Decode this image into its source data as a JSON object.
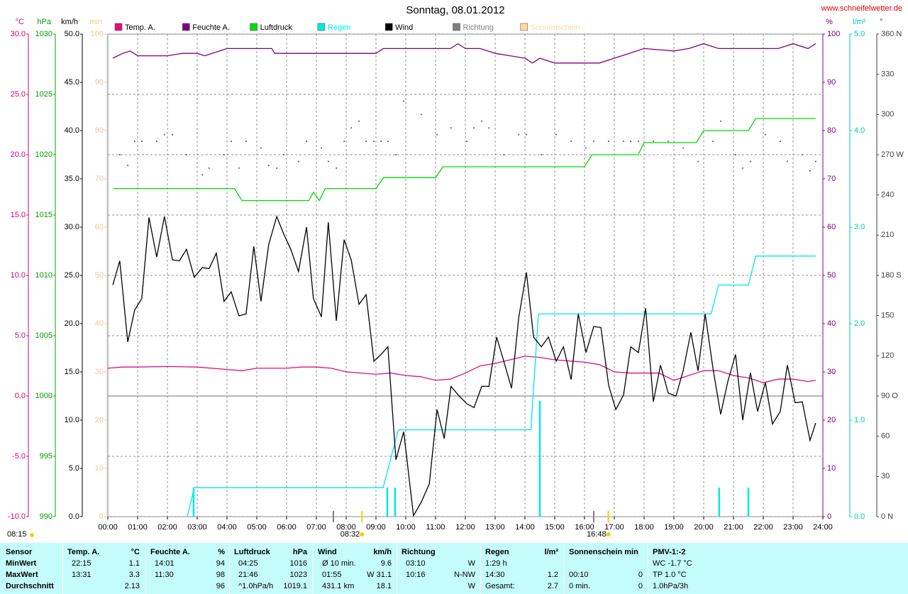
{
  "chart_data": {
    "type": "line",
    "title": "Sonntag, 08.01.2012",
    "source": "www.schneifelwetter.de",
    "xlim": [
      0,
      24
    ],
    "xticks": [
      {
        "value": 0,
        "label": "00:00"
      },
      {
        "value": 1,
        "label": "01:00"
      },
      {
        "value": 2,
        "label": "02:00"
      },
      {
        "value": 3,
        "label": "03:00"
      },
      {
        "value": 4,
        "label": "04:00"
      },
      {
        "value": 5,
        "label": "05:00"
      },
      {
        "value": 6,
        "label": "06:00"
      },
      {
        "value": 7,
        "label": "07:00"
      },
      {
        "value": 8,
        "label": "08:00"
      },
      {
        "value": 9,
        "label": "09:00"
      },
      {
        "value": 10,
        "label": "10:00"
      },
      {
        "value": 11,
        "label": "11:00"
      },
      {
        "value": 12,
        "label": "12:00"
      },
      {
        "value": 13,
        "label": "13:00"
      },
      {
        "value": 14,
        "label": "14:00"
      },
      {
        "value": 15,
        "label": "15:00"
      },
      {
        "value": 16,
        "label": "16:00"
      },
      {
        "value": 17,
        "label": "17:00"
      },
      {
        "value": 18,
        "label": "18:00"
      },
      {
        "value": 19,
        "label": "19:00"
      },
      {
        "value": 20,
        "label": "20:00"
      },
      {
        "value": 21,
        "label": "21:00"
      },
      {
        "value": 22,
        "label": "22:00"
      },
      {
        "value": 23,
        "label": "23:00"
      },
      {
        "value": 24,
        "label": "24:00"
      }
    ],
    "grid": true,
    "axes": [
      {
        "unit": "°C",
        "color": "#d0007f",
        "side": "left",
        "lim": [
          -10,
          30
        ],
        "ticks": [
          {
            "value": -10,
            "label": "-10.0"
          },
          {
            "value": -5,
            "label": "-5.0"
          },
          {
            "value": 0,
            "label": "0.0"
          },
          {
            "value": 5,
            "label": "5.0"
          },
          {
            "value": 10,
            "label": "10.0"
          },
          {
            "value": 15,
            "label": "15.0"
          },
          {
            "value": 20,
            "label": "20.0"
          },
          {
            "value": 25,
            "label": "25.0"
          },
          {
            "value": 30,
            "label": "30.0"
          }
        ]
      },
      {
        "unit": "hPa",
        "color": "#00a000",
        "side": "left",
        "lim": [
          990,
          1030
        ],
        "ticks": [
          990,
          995,
          1000,
          1005,
          1010,
          1015,
          1020,
          1025,
          1030
        ]
      },
      {
        "unit": "km/h",
        "color": "#000000",
        "side": "left",
        "lim": [
          0,
          50
        ],
        "ticks": [
          {
            "value": 0,
            "label": "0.0"
          },
          {
            "value": 5,
            "label": "5.0"
          },
          {
            "value": 10,
            "label": "10.0"
          },
          {
            "value": 15,
            "label": "15.0"
          },
          {
            "value": 20,
            "label": "20.0"
          },
          {
            "value": 25,
            "label": "25.0"
          },
          {
            "value": 30,
            "label": "30.0"
          },
          {
            "value": 35,
            "label": "35.0"
          },
          {
            "value": 40,
            "label": "40.0"
          },
          {
            "value": 45,
            "label": "45.0"
          },
          {
            "value": 50,
            "label": "50.0"
          }
        ]
      },
      {
        "unit": "min",
        "color": "#f0c890",
        "side": "left",
        "lim": [
          0,
          100
        ],
        "ticks": [
          0,
          10,
          20,
          30,
          40,
          50,
          60,
          70,
          80,
          90,
          100
        ]
      },
      {
        "unit": "%",
        "color": "#800080",
        "side": "right",
        "lim": [
          0,
          100
        ],
        "ticks": [
          0,
          10,
          20,
          30,
          40,
          50,
          60,
          70,
          80,
          90,
          100
        ]
      },
      {
        "unit": "l/m²",
        "color": "#00c8c8",
        "side": "right",
        "lim": [
          0,
          5
        ],
        "ticks": [
          {
            "value": 0,
            "label": "0.0"
          },
          {
            "value": 1,
            "label": "1.0"
          },
          {
            "value": 2,
            "label": "2.0"
          },
          {
            "value": 3,
            "label": "3.0"
          },
          {
            "value": 4,
            "label": "4.0"
          },
          {
            "value": 5,
            "label": "5.0"
          }
        ]
      },
      {
        "unit": "°",
        "color": "#404040",
        "side": "right",
        "lim": [
          0,
          360
        ],
        "ticks": [
          {
            "value": 0,
            "label": "0 N"
          },
          30,
          60,
          {
            "value": 90,
            "label": "90 O"
          },
          120,
          150,
          {
            "value": 180,
            "label": "180 S"
          },
          210,
          240,
          {
            "value": 270,
            "label": "270 W"
          },
          300,
          330,
          {
            "value": 360,
            "label": "360 N"
          }
        ]
      }
    ],
    "series": [
      {
        "name": "Temp. A.",
        "color": "#e0107a",
        "axis": 0,
        "style": "line",
        "x": [
          0,
          0.5,
          1,
          2,
          3,
          4,
          4.5,
          5,
          6,
          6.5,
          7,
          7.5,
          8,
          9,
          9.5,
          10,
          10.5,
          11,
          11.5,
          12,
          12.5,
          13,
          13.5,
          14,
          14.5,
          15,
          15.5,
          16,
          16.5,
          17,
          17.5,
          18,
          18.5,
          19,
          19.5,
          20,
          20.5,
          21,
          21.5,
          22,
          22.5,
          23,
          23.5,
          23.76
        ],
        "values": [
          2.3,
          2.4,
          2.4,
          2.45,
          2.4,
          2.2,
          2.1,
          2.3,
          2.3,
          2.4,
          2.4,
          2.3,
          2.0,
          1.8,
          1.9,
          1.7,
          1.6,
          1.3,
          1.4,
          1.9,
          2.5,
          2.7,
          3.0,
          3.3,
          3.2,
          3.0,
          2.9,
          2.8,
          2.6,
          2.0,
          1.9,
          1.9,
          1.9,
          1.3,
          1.7,
          2.1,
          2.1,
          1.7,
          1.5,
          1.1,
          1.4,
          1.4,
          1.2,
          1.3
        ]
      },
      {
        "name": "Feuchte A.",
        "color": "#800080",
        "axis": 4,
        "style": "line",
        "x": [
          0.17,
          0.5,
          0.75,
          1,
          2,
          2.5,
          3,
          3.25,
          3.5,
          4,
          5.5,
          5.6,
          9,
          9.25,
          11,
          11.5,
          11.75,
          12,
          12.5,
          13,
          13.5,
          14,
          14.25,
          14.5,
          15,
          16.5,
          17,
          17.5,
          18,
          19,
          19.5,
          20,
          20.5,
          22.5,
          23,
          23.5,
          23.76
        ],
        "values": [
          95,
          96,
          96.5,
          95.5,
          95.5,
          96,
          96,
          95.5,
          96,
          97,
          97,
          96,
          96,
          97,
          97,
          97,
          98,
          97,
          97,
          96,
          95.5,
          95,
          94,
          95,
          94,
          94,
          95,
          96,
          97,
          96.5,
          97,
          98,
          97,
          97,
          98,
          97,
          98
        ]
      },
      {
        "name": "Luftdruck",
        "color": "#00dd00",
        "axis": 1,
        "style": "line",
        "x": [
          0.17,
          4.25,
          4.5,
          6.5,
          6.75,
          6.9,
          7.1,
          7.3,
          9,
          9.25,
          11,
          11.25,
          16,
          16.25,
          17.8,
          18,
          19.75,
          20,
          21.5,
          21.75,
          23.76
        ],
        "values": [
          1017.2,
          1017.2,
          1016.2,
          1016.2,
          1016.2,
          1016.9,
          1016.2,
          1017.2,
          1017.2,
          1018.1,
          1018.1,
          1019.0,
          1019.0,
          1020.0,
          1020.0,
          1021.0,
          1021.0,
          1022.0,
          1022.0,
          1023.0,
          1023.0
        ]
      },
      {
        "name": "Regen",
        "color": "#00e8e8",
        "axis": 5,
        "style": "line",
        "x": [
          2.67,
          2.9,
          9.24,
          9.75,
          14.2,
          14.45,
          20.25,
          20.5,
          21.5,
          21.75,
          23.76
        ],
        "values": [
          0,
          0.3,
          0.3,
          0.9,
          0.9,
          2.1,
          2.1,
          2.4,
          2.4,
          2.7,
          2.7
        ],
        "bars": {
          "x": [
            2.88,
            9.38,
            9.64,
            14.5,
            20.52,
            21.5
          ],
          "values": [
            0.3,
            0.3,
            0.3,
            1.2,
            0.3,
            0.3
          ]
        }
      },
      {
        "name": "Wind",
        "color": "#000000",
        "axis": 2,
        "style": "line",
        "x": [
          0.17,
          0.4,
          0.67,
          0.9,
          1.14,
          1.38,
          1.64,
          1.9,
          2.17,
          2.4,
          2.64,
          2.9,
          3.17,
          3.4,
          3.64,
          3.9,
          4.14,
          4.4,
          4.64,
          4.9,
          5.14,
          5.4,
          5.67,
          5.9,
          6.14,
          6.4,
          6.67,
          6.9,
          7.17,
          7.4,
          7.67,
          7.93,
          8.17,
          8.43,
          8.67,
          8.93,
          9.17,
          9.4,
          9.67,
          9.93,
          10.26,
          10.52,
          10.79,
          11.05,
          11.29,
          11.52,
          11.79,
          12.05,
          12.29,
          12.55,
          12.79,
          13.05,
          13.29,
          13.55,
          13.79,
          14.05,
          14.29,
          14.55,
          14.79,
          15.05,
          15.29,
          15.55,
          15.79,
          16.05,
          16.31,
          16.55,
          16.81,
          17.05,
          17.31,
          17.55,
          17.81,
          18.05,
          18.31,
          18.55,
          18.81,
          19.07,
          19.31,
          19.57,
          19.81,
          20.05,
          20.31,
          20.57,
          20.81,
          21.07,
          21.31,
          21.57,
          21.81,
          22.07,
          22.31,
          22.57,
          22.81,
          23.07,
          23.31,
          23.57,
          23.76
        ],
        "values": [
          24.0,
          26.5,
          18.1,
          21.4,
          22.6,
          31.0,
          26.9,
          31.1,
          26.6,
          26.5,
          27.7,
          24.8,
          25.8,
          25.7,
          27.3,
          22.3,
          23.3,
          20.8,
          21.0,
          28.0,
          22.3,
          28.2,
          31.1,
          29.3,
          27.7,
          25.4,
          30.0,
          22.6,
          20.7,
          30.5,
          20.3,
          28.7,
          26.6,
          22.0,
          23.0,
          16.1,
          16.8,
          17.6,
          5.9,
          8.8,
          0.1,
          1.5,
          3.4,
          11.1,
          8.1,
          13.5,
          12.5,
          11.7,
          11.3,
          13.5,
          13.5,
          18.6,
          16.1,
          13.3,
          20.6,
          25.3,
          18.6,
          17.6,
          18.6,
          16.1,
          17.6,
          14.2,
          21.0,
          17.0,
          19.7,
          19.6,
          13.6,
          11.1,
          12.6,
          17.6,
          17.0,
          21.6,
          11.9,
          15.7,
          12.8,
          12.5,
          15.1,
          19.1,
          15.1,
          21.0,
          15.4,
          10.6,
          14.0,
          16.8,
          10.0,
          14.9,
          10.9,
          13.9,
          9.6,
          10.9,
          15.7,
          11.8,
          11.9,
          7.9,
          9.7
        ]
      },
      {
        "name": "Richtung",
        "color": "#808080",
        "axis": 6,
        "style": "dots",
        "x": [
          0.4,
          0.67,
          0.9,
          1.14,
          1.64,
          1.9,
          2.17,
          2.64,
          3.17,
          3.4,
          3.9,
          4.14,
          4.4,
          4.64,
          5.14,
          5.4,
          5.67,
          5.9,
          6.4,
          6.67,
          7.17,
          7.4,
          7.67,
          7.93,
          8.17,
          8.43,
          8.67,
          8.93,
          9.17,
          9.4,
          9.67,
          9.93,
          10.52,
          11.05,
          11.52,
          12.05,
          12.29,
          12.55,
          12.79,
          13.29,
          13.79,
          14.05,
          14.55,
          15.05,
          15.55,
          16.05,
          16.31,
          16.81,
          17.31,
          17.55,
          17.81,
          18.31,
          18.81,
          19.31,
          19.81,
          20.31,
          20.57,
          21.07,
          21.31,
          21.57,
          22.07,
          22.57,
          22.81,
          23.31,
          23.57,
          23.76
        ],
        "values": [
          270,
          262,
          280,
          280,
          280,
          285,
          285,
          270,
          255,
          260,
          270,
          280,
          260,
          280,
          275,
          262,
          260,
          270,
          265,
          280,
          275,
          265,
          260,
          280,
          290,
          295,
          280,
          280,
          280,
          280,
          270,
          310,
          300,
          285,
          290,
          280,
          290,
          295,
          290,
          270,
          285,
          285,
          270,
          285,
          280,
          275,
          280,
          280,
          280,
          280,
          280,
          280,
          280,
          275,
          265,
          280,
          295,
          270,
          260,
          265,
          285,
          280,
          265,
          270,
          258,
          265
        ]
      },
      {
        "name": "Sonnenschein",
        "color": "#ffd8a0",
        "axis": 3,
        "style": "line",
        "x": [],
        "values": []
      }
    ],
    "sun_markers": [
      {
        "x": 8.53,
        "label": "08:32"
      },
      {
        "x": 16.8,
        "label": "16:48"
      }
    ],
    "twilight_x": [
      7.57,
      16.31
    ],
    "footer_time": "08:15"
  },
  "table": {
    "groups": [
      {
        "title": "Sensor"
      },
      {
        "title": "Temp. A.",
        "unit": "°C"
      },
      {
        "title": "Feuchte A.",
        "unit": "%"
      },
      {
        "title": "Luftdruck",
        "unit": "hPa"
      },
      {
        "title": "Wind",
        "unit": "km/h"
      },
      {
        "title": "Richtung"
      },
      {
        "title": "Regen",
        "unit": "l/m²"
      },
      {
        "title": "Sonnenschein min"
      },
      {
        "title": "PMV-1:-2"
      }
    ],
    "rows": [
      {
        "label": "MinWert",
        "cells": [
          {
            "left": "22:15",
            "right": "1.1"
          },
          {
            "left": "14:01",
            "right": "94"
          },
          {
            "left": "04:25",
            "right": "1016"
          },
          {
            "left": "Ø 10 min.",
            "right": "9.6"
          },
          {
            "left": "03:10",
            "right": "W"
          },
          {
            "left": "1:29 h"
          },
          {},
          {
            "left": "WC -1.7 °C"
          }
        ]
      },
      {
        "label": "MaxWert",
        "cells": [
          {
            "left": "13:31",
            "right": "3.3"
          },
          {
            "left": "11:30",
            "right": "98"
          },
          {
            "left": "21:46",
            "right": "1023"
          },
          {
            "left": "01:55",
            "right": "W 31.1"
          },
          {
            "left": "10:16",
            "right": "N-NW"
          },
          {
            "left": "14:30",
            "right": "1.2"
          },
          {
            "left": "00:10",
            "right": "0"
          },
          {
            "left": "TP 1.0 °C"
          }
        ]
      },
      {
        "label": "Durchschnitt",
        "cells": [
          {
            "right": "2.13"
          },
          {
            "right": "96"
          },
          {
            "left": "^1.0hPa/h",
            "right": "1019.1"
          },
          {
            "left": "431.1 km",
            "right": "18.1"
          },
          {
            "right": "W"
          },
          {
            "left": "Gesamt:",
            "right": "2.7"
          },
          {
            "left": "0 min.",
            "right": "0"
          },
          {
            "left": "1.0hPa/3h"
          }
        ]
      }
    ]
  }
}
